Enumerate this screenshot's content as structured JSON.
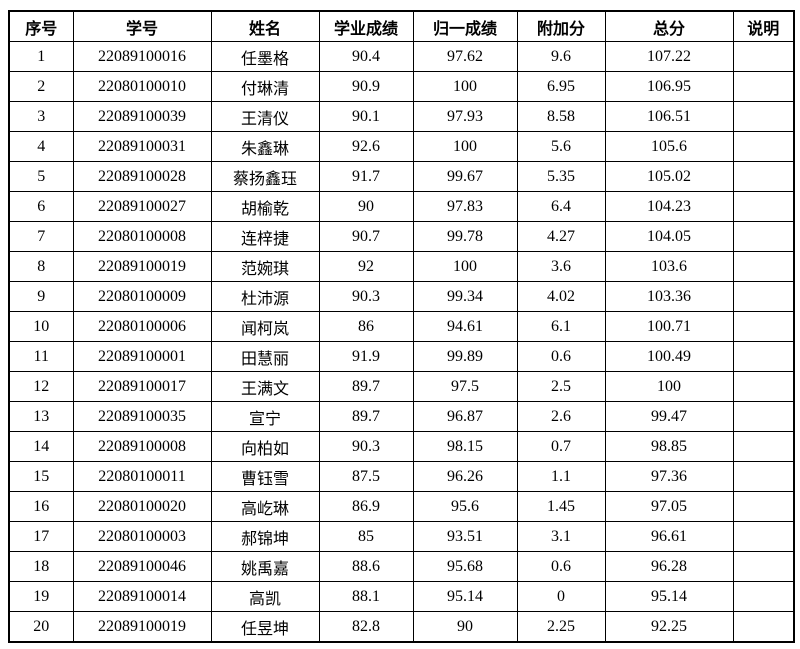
{
  "table": {
    "column_keys": [
      "index",
      "student-id",
      "name",
      "academic-score",
      "normalized-score",
      "bonus-points",
      "total-score",
      "notes"
    ],
    "columns": [
      "序号",
      "学号",
      "姓名",
      "学业成绩",
      "归一成绩",
      "附加分",
      "总分",
      "说明"
    ],
    "rows": [
      [
        "1",
        "22089100016",
        "任墨格",
        "90.4",
        "97.62",
        "9.6",
        "107.22",
        ""
      ],
      [
        "2",
        "22080100010",
        "付琳清",
        "90.9",
        "100",
        "6.95",
        "106.95",
        ""
      ],
      [
        "3",
        "22089100039",
        "王清仪",
        "90.1",
        "97.93",
        "8.58",
        "106.51",
        ""
      ],
      [
        "4",
        "22089100031",
        "朱鑫琳",
        "92.6",
        "100",
        "5.6",
        "105.6",
        ""
      ],
      [
        "5",
        "22089100028",
        "蔡扬鑫珏",
        "91.7",
        "99.67",
        "5.35",
        "105.02",
        ""
      ],
      [
        "6",
        "22089100027",
        "胡榆乾",
        "90",
        "97.83",
        "6.4",
        "104.23",
        ""
      ],
      [
        "7",
        "22080100008",
        "连梓捷",
        "90.7",
        "99.78",
        "4.27",
        "104.05",
        ""
      ],
      [
        "8",
        "22089100019",
        "范婉琪",
        "92",
        "100",
        "3.6",
        "103.6",
        ""
      ],
      [
        "9",
        "22080100009",
        "杜沛源",
        "90.3",
        "99.34",
        "4.02",
        "103.36",
        ""
      ],
      [
        "10",
        "22080100006",
        "闻柯岚",
        "86",
        "94.61",
        "6.1",
        "100.71",
        ""
      ],
      [
        "11",
        "22089100001",
        "田慧丽",
        "91.9",
        "99.89",
        "0.6",
        "100.49",
        ""
      ],
      [
        "12",
        "22089100017",
        "王满文",
        "89.7",
        "97.5",
        "2.5",
        "100",
        ""
      ],
      [
        "13",
        "22089100035",
        "宣宁",
        "89.7",
        "96.87",
        "2.6",
        "99.47",
        ""
      ],
      [
        "14",
        "22089100008",
        "向柏如",
        "90.3",
        "98.15",
        "0.7",
        "98.85",
        ""
      ],
      [
        "15",
        "22080100011",
        "曹钰雪",
        "87.5",
        "96.26",
        "1.1",
        "97.36",
        ""
      ],
      [
        "16",
        "22080100020",
        "高屹琳",
        "86.9",
        "95.6",
        "1.45",
        "97.05",
        ""
      ],
      [
        "17",
        "22080100003",
        "郝锦坤",
        "85",
        "93.51",
        "3.1",
        "96.61",
        ""
      ],
      [
        "18",
        "22089100046",
        "姚禹嘉",
        "88.6",
        "95.68",
        "0.6",
        "96.28",
        ""
      ],
      [
        "19",
        "22089100014",
        "高凯",
        "88.1",
        "95.14",
        "0",
        "95.14",
        ""
      ],
      [
        "20",
        "22089100019",
        "任昱坤",
        "82.8",
        "90",
        "2.25",
        "92.25",
        ""
      ]
    ]
  }
}
